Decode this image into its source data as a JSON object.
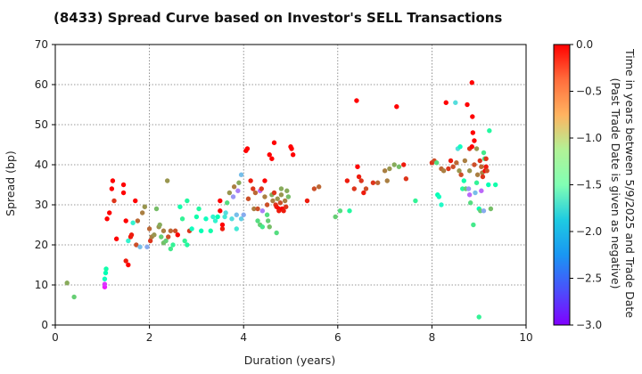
{
  "chart_data": {
    "type": "scatter",
    "title": "(8433)   Spread Curve based on Investor's SELL Transactions",
    "xlabel": "Duration (years)",
    "ylabel": "Spread (bp)",
    "xlim": [
      0,
      10
    ],
    "ylim": [
      0,
      70
    ],
    "xticks": [
      "0",
      "2",
      "4",
      "6",
      "8",
      "10"
    ],
    "yticks": [
      "0",
      "10",
      "20",
      "30",
      "40",
      "50",
      "60",
      "70"
    ],
    "grid": true,
    "colorbar": {
      "label_line1": "Time in years between 5/9/2025 and Trade Date",
      "label_line2": "(Past Trade Date is given as negative)",
      "range": [
        -3.0,
        0.0
      ],
      "ticks": [
        "0.0",
        "−0.5",
        "−1.0",
        "−1.5",
        "−2.0",
        "−2.5",
        "−3.0"
      ],
      "colormap": "rainbow"
    },
    "points": [
      [
        0.25,
        10.5,
        -0.7
      ],
      [
        0.4,
        7,
        -0.9
      ],
      [
        1.05,
        9.5,
        -2.9
      ],
      [
        1.05,
        10.2,
        -2.8
      ],
      [
        1.05,
        11.5,
        -1.6
      ],
      [
        1.07,
        13,
        -1.5
      ],
      [
        1.08,
        14,
        -1.4
      ],
      [
        1.1,
        26.5,
        0
      ],
      [
        1.15,
        28,
        0
      ],
      [
        1.2,
        34,
        0
      ],
      [
        1.22,
        36,
        0
      ],
      [
        1.25,
        31,
        -0.2
      ],
      [
        1.3,
        21.5,
        0
      ],
      [
        1.45,
        35,
        0
      ],
      [
        1.45,
        33,
        0
      ],
      [
        1.5,
        26,
        0
      ],
      [
        1.5,
        16,
        -0.1
      ],
      [
        1.55,
        15,
        0
      ],
      [
        1.55,
        21,
        -1.8
      ],
      [
        1.6,
        22,
        -0.1
      ],
      [
        1.62,
        22.5,
        -0.1
      ],
      [
        1.65,
        25.5,
        -1.8
      ],
      [
        1.7,
        31,
        0
      ],
      [
        1.72,
        20,
        -0.3
      ],
      [
        1.75,
        26,
        -0.4
      ],
      [
        1.8,
        19.5,
        -2.2
      ],
      [
        1.85,
        28,
        -0.5
      ],
      [
        1.9,
        29.5,
        -0.6
      ],
      [
        1.95,
        19.5,
        -2.3
      ],
      [
        2.0,
        24,
        -0.4
      ],
      [
        2.02,
        21,
        -0.2
      ],
      [
        2.05,
        22,
        -0.5
      ],
      [
        2.1,
        22.5,
        -0.6
      ],
      [
        2.15,
        29,
        -0.8
      ],
      [
        2.2,
        24.5,
        -0.6
      ],
      [
        2.22,
        25,
        -0.7
      ],
      [
        2.25,
        22,
        -0.9
      ],
      [
        2.3,
        23.5,
        -0.5
      ],
      [
        2.3,
        20.5,
        -0.8
      ],
      [
        2.35,
        21,
        -0.9
      ],
      [
        2.38,
        36,
        -0.6
      ],
      [
        2.4,
        22,
        -0.3
      ],
      [
        2.45,
        23.5,
        -0.4
      ],
      [
        2.45,
        19,
        -1.1
      ],
      [
        2.5,
        20,
        -1.2
      ],
      [
        2.55,
        23.5,
        -0.3
      ],
      [
        2.6,
        22.5,
        0
      ],
      [
        2.65,
        29.5,
        -1.4
      ],
      [
        2.7,
        26.5,
        -1.2
      ],
      [
        2.75,
        21,
        -1.2
      ],
      [
        2.8,
        20,
        -1.3
      ],
      [
        2.8,
        31,
        -1.3
      ],
      [
        2.85,
        23.5,
        -0.2
      ],
      [
        2.9,
        24,
        -1.6
      ],
      [
        3.0,
        27,
        -1.4
      ],
      [
        3.05,
        29,
        -1.3
      ],
      [
        3.1,
        23.5,
        -1.5
      ],
      [
        3.2,
        26.5,
        -1.6
      ],
      [
        3.3,
        23.5,
        -1.4
      ],
      [
        3.35,
        27,
        -1.8
      ],
      [
        3.4,
        26,
        -1.8
      ],
      [
        3.45,
        27,
        -1.5
      ],
      [
        3.5,
        31,
        0
      ],
      [
        3.5,
        28.5,
        0
      ],
      [
        3.55,
        24,
        -0.1
      ],
      [
        3.55,
        25,
        0
      ],
      [
        3.6,
        27,
        -1.9
      ],
      [
        3.62,
        28,
        -2.0
      ],
      [
        3.65,
        30.5,
        -1.0
      ],
      [
        3.7,
        33,
        -0.6
      ],
      [
        3.75,
        26.5,
        -2.0
      ],
      [
        3.78,
        32,
        -2.4
      ],
      [
        3.8,
        34.5,
        -0.5
      ],
      [
        3.85,
        27.5,
        -2.2
      ],
      [
        3.85,
        24,
        -1.9
      ],
      [
        3.88,
        33.5,
        -2.5
      ],
      [
        3.9,
        35.5,
        -0.7
      ],
      [
        3.95,
        26.5,
        -2.1
      ],
      [
        3.95,
        37.5,
        -2.2
      ],
      [
        4.0,
        27.5,
        -2.3
      ],
      [
        4.05,
        43.5,
        0
      ],
      [
        4.08,
        44,
        0
      ],
      [
        4.1,
        31.5,
        -0.3
      ],
      [
        4.15,
        36,
        -0.1
      ],
      [
        4.2,
        34,
        -0.2
      ],
      [
        4.22,
        29,
        -0.5
      ],
      [
        4.25,
        33,
        -0.4
      ],
      [
        4.3,
        29,
        -0.3
      ],
      [
        4.3,
        26,
        -1.0
      ],
      [
        4.35,
        33.5,
        -2.6
      ],
      [
        4.35,
        25,
        -0.9
      ],
      [
        4.38,
        34,
        -0.2
      ],
      [
        4.4,
        28.5,
        -2.5
      ],
      [
        4.4,
        24.5,
        -1.1
      ],
      [
        4.45,
        32,
        -0.5
      ],
      [
        4.45,
        36,
        0
      ],
      [
        4.5,
        30,
        -0.3
      ],
      [
        4.5,
        27.5,
        -1.0
      ],
      [
        4.52,
        26,
        -0.9
      ],
      [
        4.55,
        24.5,
        -0.8
      ],
      [
        4.55,
        42.5,
        0
      ],
      [
        4.6,
        41.5,
        0
      ],
      [
        4.6,
        32.5,
        -0.7
      ],
      [
        4.62,
        31,
        -0.5
      ],
      [
        4.65,
        45.5,
        0
      ],
      [
        4.65,
        33,
        -0.2
      ],
      [
        4.68,
        30,
        -0.2
      ],
      [
        4.7,
        29.5,
        -0.1
      ],
      [
        4.7,
        23,
        -1.0
      ],
      [
        4.72,
        31.5,
        -0.6
      ],
      [
        4.75,
        29,
        0
      ],
      [
        4.75,
        28.5,
        -0.1
      ],
      [
        4.78,
        30.5,
        -0.3
      ],
      [
        4.8,
        32.5,
        -0.6
      ],
      [
        4.8,
        34,
        -0.7
      ],
      [
        4.82,
        29,
        0
      ],
      [
        4.85,
        28.5,
        -0.1
      ],
      [
        4.88,
        31,
        -0.5
      ],
      [
        4.9,
        29.5,
        -0.2
      ],
      [
        4.92,
        33.5,
        -0.7
      ],
      [
        4.95,
        32,
        -0.8
      ],
      [
        5.0,
        44.5,
        0
      ],
      [
        5.02,
        44,
        0
      ],
      [
        5.05,
        42.5,
        0
      ],
      [
        5.35,
        31,
        -0.1
      ],
      [
        5.5,
        34,
        -0.3
      ],
      [
        5.6,
        34.5,
        -0.4
      ],
      [
        5.95,
        27,
        -0.9
      ],
      [
        6.05,
        28.5,
        -1.0
      ],
      [
        6.2,
        36,
        -0.1
      ],
      [
        6.25,
        28.5,
        -1.3
      ],
      [
        6.35,
        34,
        -0.2
      ],
      [
        6.4,
        56,
        0
      ],
      [
        6.42,
        39.5,
        0
      ],
      [
        6.45,
        37,
        -0.1
      ],
      [
        6.5,
        36,
        -0.2
      ],
      [
        6.55,
        33,
        -0.1
      ],
      [
        6.6,
        34,
        -0.3
      ],
      [
        6.75,
        35.5,
        -0.2
      ],
      [
        6.85,
        35.5,
        -0.4
      ],
      [
        7.0,
        38.5,
        -0.5
      ],
      [
        7.05,
        36,
        -0.5
      ],
      [
        7.1,
        39,
        -0.6
      ],
      [
        7.2,
        40,
        -0.7
      ],
      [
        7.25,
        54.5,
        0
      ],
      [
        7.3,
        39.5,
        -0.8
      ],
      [
        7.4,
        40,
        -0.1
      ],
      [
        7.45,
        36.5,
        -0.2
      ],
      [
        7.65,
        31,
        -1.2
      ],
      [
        8.0,
        40.5,
        -0.2
      ],
      [
        8.05,
        41,
        -0.3
      ],
      [
        8.1,
        40.5,
        -1.0
      ],
      [
        8.12,
        32.5,
        -1.5
      ],
      [
        8.15,
        32,
        -1.6
      ],
      [
        8.2,
        30,
        -1.7
      ],
      [
        8.2,
        39,
        -0.4
      ],
      [
        8.25,
        38.5,
        -0.5
      ],
      [
        8.3,
        55.5,
        0
      ],
      [
        8.35,
        39,
        -0.2
      ],
      [
        8.4,
        41,
        -0.1
      ],
      [
        8.45,
        39.5,
        -0.3
      ],
      [
        8.5,
        55.5,
        -2.0
      ],
      [
        8.52,
        40.5,
        -0.4
      ],
      [
        8.55,
        44,
        -2.0
      ],
      [
        8.58,
        38.5,
        -0.6
      ],
      [
        8.6,
        44.5,
        -1.6
      ],
      [
        8.62,
        37.5,
        -0.3
      ],
      [
        8.65,
        34,
        -1.3
      ],
      [
        8.68,
        36,
        -1.4
      ],
      [
        8.7,
        41,
        -0.5
      ],
      [
        8.72,
        34,
        -0.9
      ],
      [
        8.75,
        55,
        0
      ],
      [
        8.78,
        34,
        -2.4
      ],
      [
        8.8,
        44,
        -0.2
      ],
      [
        8.8,
        38.5,
        -0.6
      ],
      [
        8.8,
        32.5,
        -2.6
      ],
      [
        8.82,
        30.5,
        -1.0
      ],
      [
        8.85,
        60.5,
        0
      ],
      [
        8.85,
        44.5,
        0
      ],
      [
        8.86,
        52,
        0
      ],
      [
        8.87,
        48,
        0
      ],
      [
        8.88,
        25,
        -1.1
      ],
      [
        8.9,
        46,
        0
      ],
      [
        8.9,
        40,
        -0.3
      ],
      [
        8.92,
        33,
        -2.2
      ],
      [
        8.95,
        44,
        -0.6
      ],
      [
        8.95,
        35.5,
        -1.2
      ],
      [
        8.97,
        37.5,
        -0.5
      ],
      [
        9.0,
        29,
        -1.5
      ],
      [
        9.0,
        2,
        -1.2
      ],
      [
        9.02,
        41,
        -0.2
      ],
      [
        9.03,
        28.5,
        -0.9
      ],
      [
        9.05,
        39.5,
        -0.4
      ],
      [
        9.05,
        33.5,
        -2.6
      ],
      [
        9.07,
        38,
        -0.5
      ],
      [
        9.08,
        37,
        -0.2
      ],
      [
        9.1,
        43,
        -1.1
      ],
      [
        9.1,
        28.5,
        -2.3
      ],
      [
        9.12,
        41.5,
        -1.2
      ],
      [
        9.13,
        38.5,
        0
      ],
      [
        9.15,
        39.5,
        -0.1
      ],
      [
        9.15,
        41.5,
        -0.2
      ],
      [
        9.17,
        38.5,
        -0.3
      ],
      [
        9.2,
        35,
        -1.5
      ],
      [
        9.22,
        48.5,
        -1.3
      ],
      [
        9.25,
        29,
        -0.8
      ],
      [
        9.35,
        35,
        -1.4
      ]
    ]
  }
}
